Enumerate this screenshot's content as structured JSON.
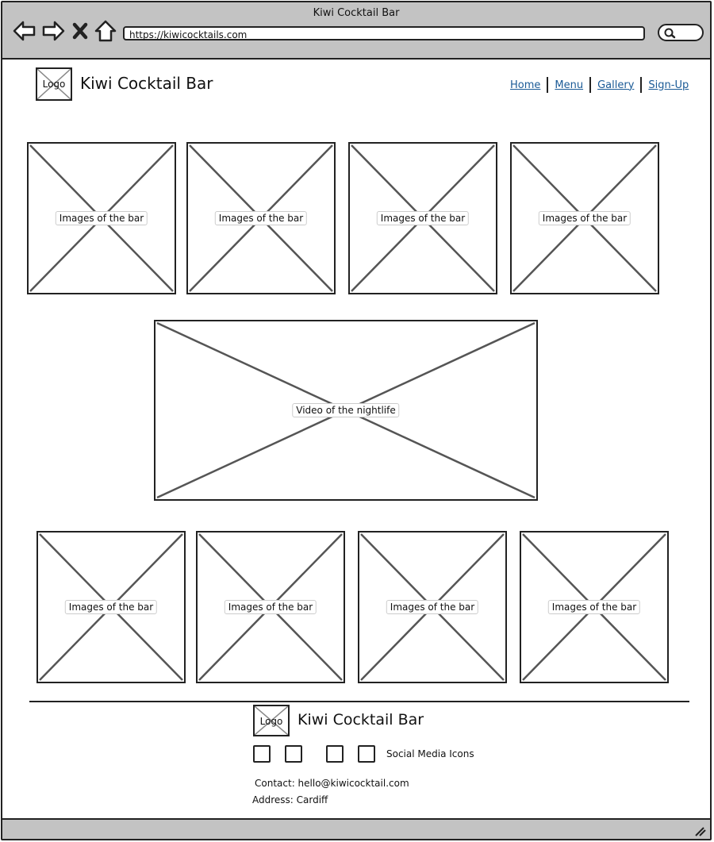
{
  "browser": {
    "window_title": "Kiwi Cocktail Bar",
    "url": "https://kiwicocktails.com",
    "buttons": [
      "back-arrow-icon",
      "forward-arrow-icon",
      "close-icon",
      "home-icon"
    ],
    "search_icon": "search-icon"
  },
  "header": {
    "logo_label": "Logo",
    "brand_name": "Kiwi Cocktail Bar",
    "nav": [
      {
        "label": "Home"
      },
      {
        "label": "Menu"
      },
      {
        "label": "Gallery"
      },
      {
        "label": "Sign-Up"
      }
    ]
  },
  "gallery_top": [
    {
      "label": "Images of the bar"
    },
    {
      "label": "Images of the bar"
    },
    {
      "label": "Images of the bar"
    },
    {
      "label": "Images of the bar"
    }
  ],
  "video": {
    "label": "Video of the nightlife"
  },
  "gallery_bottom": [
    {
      "label": "Images of the bar"
    },
    {
      "label": "Images of the bar"
    },
    {
      "label": "Images of the bar"
    },
    {
      "label": "Images of the bar"
    }
  ],
  "footer": {
    "logo_label": "Logo",
    "brand_name": "Kiwi Cocktail Bar",
    "social_label": "Social Media Icons",
    "contact": "Contact: hello@kiwicocktail.com",
    "address": "Address: Cardiff"
  },
  "colors": {
    "chrome": "#c3c3c3",
    "link": "#1a5a96",
    "stroke": "#222222"
  }
}
